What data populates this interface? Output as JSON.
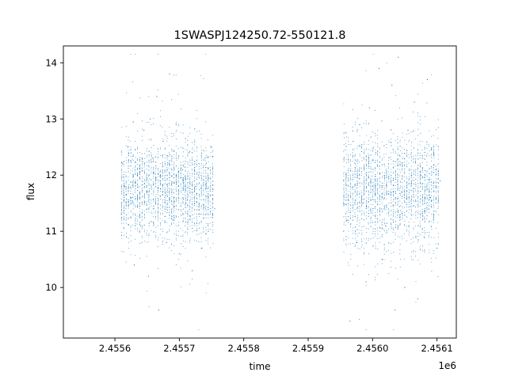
{
  "chart_data": {
    "type": "scatter",
    "title": "1SWASPJ124250.72-550121.8",
    "xlabel": "time",
    "ylabel": "flux",
    "x_offset_label": "1e6",
    "xlim": [
      2.45552,
      2.45613
    ],
    "ylim": [
      9.1,
      14.3
    ],
    "x_ticks": [
      {
        "value": 2.4556,
        "label": "2.4556"
      },
      {
        "value": 2.4557,
        "label": "2.4557"
      },
      {
        "value": 2.4558,
        "label": "2.4558"
      },
      {
        "value": 2.4559,
        "label": "2.4559"
      },
      {
        "value": 2.456,
        "label": "2.4560"
      },
      {
        "value": 2.4561,
        "label": "2.4561"
      }
    ],
    "y_ticks": [
      {
        "value": 10,
        "label": "10"
      },
      {
        "value": 11,
        "label": "11"
      },
      {
        "value": 12,
        "label": "12"
      },
      {
        "value": 13,
        "label": "13"
      },
      {
        "value": 14,
        "label": "14"
      }
    ],
    "grid": false,
    "marker_color": "#1f77b4",
    "observing_seasons": [
      {
        "x_start": 2.45561,
        "x_end": 2.455755,
        "y_center": 11.75,
        "y_typical_range": [
          10.8,
          12.6
        ]
      },
      {
        "x_start": 2.455955,
        "x_end": 2.456105,
        "y_center": 11.75,
        "y_typical_range": [
          10.7,
          12.7
        ]
      }
    ],
    "points": [
      [
        2.45561,
        11.3
      ],
      [
        2.455612,
        12.2
      ],
      [
        2.455615,
        11.8
      ],
      [
        2.455618,
        10.9
      ],
      [
        2.45562,
        12.5
      ],
      [
        2.455625,
        11.6
      ],
      [
        2.45563,
        10.4
      ],
      [
        2.455635,
        12.0
      ],
      [
        2.45564,
        11.1
      ],
      [
        2.455645,
        12.8
      ],
      [
        2.45565,
        11.7
      ],
      [
        2.455652,
        10.2
      ],
      [
        2.455655,
        13.0
      ],
      [
        2.455658,
        12.3
      ],
      [
        2.45566,
        11.4
      ],
      [
        2.455665,
        13.4
      ],
      [
        2.455668,
        9.6
      ],
      [
        2.45567,
        11.9
      ],
      [
        2.455675,
        12.6
      ],
      [
        2.45568,
        10.8
      ],
      [
        2.455685,
        13.8
      ],
      [
        2.45569,
        11.2
      ],
      [
        2.455695,
        12.9
      ],
      [
        2.4557,
        10.6
      ],
      [
        2.455705,
        12.1
      ],
      [
        2.45571,
        11.5
      ],
      [
        2.455715,
        12.4
      ],
      [
        2.45572,
        10.3
      ],
      [
        2.455725,
        11.8
      ],
      [
        2.45573,
        12.0
      ],
      [
        2.455735,
        10.7
      ],
      [
        2.45574,
        12.3
      ],
      [
        2.455745,
        11.0
      ],
      [
        2.45575,
        12.5
      ],
      [
        2.455755,
        11.4
      ],
      [
        2.455955,
        11.9
      ],
      [
        2.45596,
        11.2
      ],
      [
        2.455965,
        9.4
      ],
      [
        2.45597,
        12.6
      ],
      [
        2.455975,
        10.8
      ],
      [
        2.45598,
        12.9
      ],
      [
        2.455985,
        11.5
      ],
      [
        2.45599,
        10.1
      ],
      [
        2.455995,
        13.2
      ],
      [
        2.456,
        11.8
      ],
      [
        2.456005,
        12.4
      ],
      [
        2.45601,
        13.9
      ],
      [
        2.456015,
        10.5
      ],
      [
        2.45602,
        11.1
      ],
      [
        2.456025,
        12.2
      ],
      [
        2.45603,
        13.6
      ],
      [
        2.456035,
        9.6
      ],
      [
        2.45604,
        14.1
      ],
      [
        2.456045,
        11.7
      ],
      [
        2.45605,
        10.0
      ],
      [
        2.456055,
        12.8
      ],
      [
        2.45606,
        11.3
      ],
      [
        2.456065,
        13.3
      ],
      [
        2.45607,
        9.8
      ],
      [
        2.456075,
        12.0
      ],
      [
        2.45608,
        10.9
      ],
      [
        2.456085,
        13.7
      ],
      [
        2.45609,
        11.6
      ],
      [
        2.456095,
        12.5
      ],
      [
        2.4561,
        10.7
      ],
      [
        2.456105,
        11.9
      ]
    ]
  }
}
